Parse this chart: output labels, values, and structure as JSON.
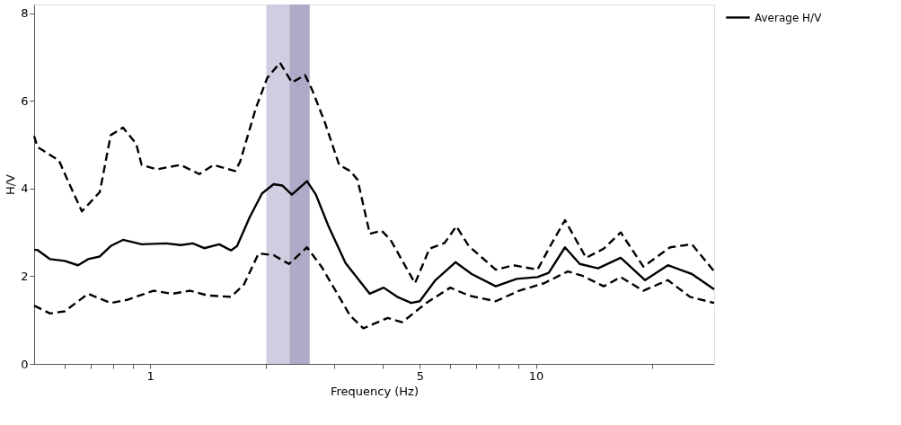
{
  "chart_data": {
    "type": "line",
    "xlabel": "Frequency (Hz)",
    "ylabel": "H/V",
    "log": "x",
    "grid": false,
    "legend": "right",
    "marker": "none",
    "xlim": [
      0.5,
      29
    ],
    "ylim": [
      0,
      8.2
    ],
    "xticks": [
      {
        "value": 0.6,
        "label": null
      },
      {
        "value": 0.7,
        "label": null
      },
      {
        "value": 0.8,
        "label": null
      },
      {
        "value": 0.9,
        "label": null
      },
      1,
      {
        "value": 2,
        "label": null
      },
      {
        "value": 3,
        "label": null
      },
      {
        "value": 4,
        "label": null
      },
      5,
      {
        "value": 6,
        "label": null
      },
      {
        "value": 7,
        "label": null
      },
      {
        "value": 8,
        "label": null
      },
      {
        "value": 9,
        "label": null
      },
      10,
      {
        "value": 20,
        "label": null
      }
    ],
    "yticks": [
      0,
      2,
      4,
      6,
      8
    ],
    "bands": [
      {
        "axis": "x",
        "from": 2.0,
        "to": 2.59,
        "color": "#cfcde0"
      },
      {
        "axis": "x",
        "from": 2.3,
        "to": 2.59,
        "color": "#aeabc8"
      }
    ],
    "series": [
      {
        "name": "Average H/V",
        "color": "#000000",
        "line_style": "solid",
        "x": [
          0.5,
          0.51,
          0.55,
          0.6,
          0.65,
          0.69,
          0.74,
          0.79,
          0.85,
          0.95,
          1.1,
          1.2,
          1.29,
          1.38,
          1.51,
          1.62,
          1.68,
          1.81,
          1.95,
          2.09,
          2.2,
          2.33,
          2.55,
          2.69,
          2.9,
          3.21,
          3.71,
          4.03,
          4.37,
          4.75,
          5.0,
          5.49,
          6.19,
          6.82,
          7.87,
          8.92,
          10.1,
          10.8,
          11.9,
          13.0,
          14.5,
          16.6,
          19.2,
          22.0,
          25.4,
          29.0
        ],
        "values": [
          2.6,
          2.6,
          2.39,
          2.35,
          2.25,
          2.39,
          2.45,
          2.69,
          2.83,
          2.73,
          2.75,
          2.71,
          2.75,
          2.64,
          2.73,
          2.59,
          2.69,
          3.34,
          3.89,
          4.1,
          4.07,
          3.86,
          4.17,
          3.86,
          3.14,
          2.3,
          1.6,
          1.74,
          1.53,
          1.39,
          1.43,
          1.91,
          2.32,
          2.05,
          1.77,
          1.94,
          1.98,
          2.08,
          2.66,
          2.28,
          2.18,
          2.42,
          1.91,
          2.25,
          2.05,
          1.7
        ]
      },
      {
        "color": "#000000",
        "line_style": "dashed",
        "x": [
          0.5,
          0.51,
          0.58,
          0.61,
          0.665,
          0.74,
          0.79,
          0.85,
          0.92,
          0.95,
          1.04,
          1.2,
          1.34,
          1.46,
          1.66,
          1.71,
          1.88,
          2.01,
          2.17,
          2.33,
          2.52,
          2.63,
          2.84,
          3.09,
          3.3,
          3.45,
          3.71,
          3.98,
          4.2,
          4.86,
          5.3,
          5.8,
          6.22,
          6.7,
          7.87,
          8.76,
          10.1,
          10.9,
          11.9,
          13.5,
          15.0,
          16.6,
          19.0,
          22.3,
          25.4,
          29.0
        ],
        "values": [
          5.2,
          4.95,
          4.64,
          4.2,
          3.48,
          3.92,
          5.22,
          5.39,
          5.02,
          4.54,
          4.44,
          4.54,
          4.33,
          4.54,
          4.4,
          4.61,
          5.84,
          6.52,
          6.87,
          6.42,
          6.59,
          6.25,
          5.5,
          4.54,
          4.4,
          4.2,
          2.97,
          3.04,
          2.83,
          1.84,
          2.63,
          2.76,
          3.14,
          2.69,
          2.15,
          2.25,
          2.15,
          2.69,
          3.28,
          2.42,
          2.63,
          3.0,
          2.22,
          2.66,
          2.73,
          2.11
        ]
      },
      {
        "color": "#000000",
        "line_style": "dashed",
        "x": [
          0.5,
          0.55,
          0.6,
          0.69,
          0.79,
          0.87,
          1.02,
          1.14,
          1.27,
          1.41,
          1.62,
          1.75,
          1.91,
          2.09,
          2.29,
          2.55,
          2.78,
          3.09,
          3.3,
          3.57,
          4.13,
          4.5,
          5.2,
          6.0,
          6.7,
          7.87,
          9.05,
          10.5,
          12.1,
          13.2,
          15.0,
          16.6,
          19.0,
          22.0,
          25.1,
          29.0
        ],
        "values": [
          1.33,
          1.15,
          1.2,
          1.6,
          1.39,
          1.46,
          1.67,
          1.6,
          1.67,
          1.56,
          1.53,
          1.81,
          2.52,
          2.48,
          2.28,
          2.66,
          2.22,
          1.53,
          1.1,
          0.81,
          1.05,
          0.95,
          1.39,
          1.74,
          1.56,
          1.43,
          1.67,
          1.84,
          2.11,
          2.01,
          1.77,
          1.98,
          1.67,
          1.91,
          1.53,
          1.39
        ]
      }
    ]
  }
}
